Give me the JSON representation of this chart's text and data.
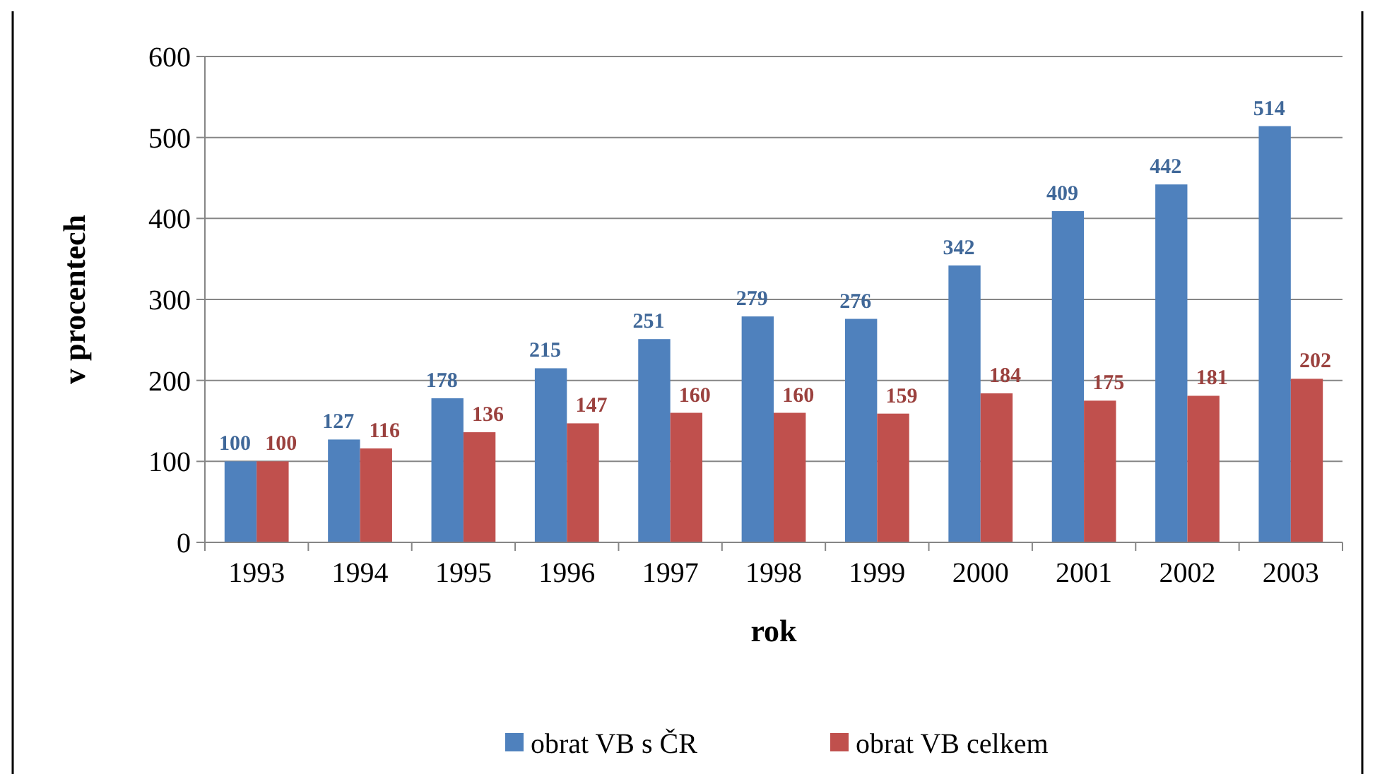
{
  "chart_data": {
    "type": "bar",
    "xlabel": "rok",
    "ylabel": "v procentech",
    "categories": [
      "1993",
      "1994",
      "1995",
      "1996",
      "1997",
      "1998",
      "1999",
      "2000",
      "2001",
      "2002",
      "2003"
    ],
    "series": [
      {
        "name": "obrat VB s ČR",
        "color": "#4f81bd",
        "values": [
          100,
          127,
          178,
          215,
          251,
          279,
          276,
          342,
          409,
          442,
          514
        ]
      },
      {
        "name": "obrat VB celkem",
        "color": "#c0504d",
        "values": [
          100,
          116,
          136,
          147,
          160,
          160,
          159,
          184,
          175,
          181,
          202
        ]
      }
    ],
    "ylim": [
      0,
      600
    ],
    "yticks": [
      0,
      100,
      200,
      300,
      400,
      500,
      600
    ],
    "grid": "y",
    "legend": "bottom",
    "data_labels": true
  }
}
